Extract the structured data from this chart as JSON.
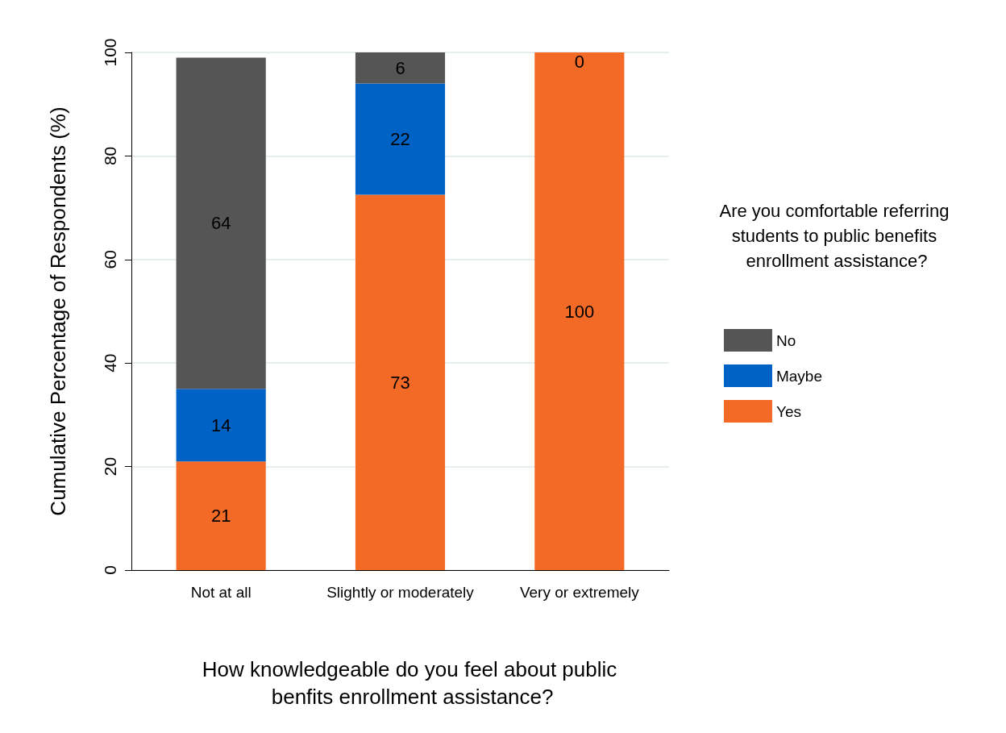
{
  "chart_data": {
    "type": "bar",
    "stacked": true,
    "xlabel": "How knowledgeable do you feel about public benfits enrollment assistance?",
    "ylabel": "Cumulative Percentage of Respondents (%)",
    "legend_title": "Are you comfortable referring students to public benefits enrollment assistance?",
    "categories": [
      "Not at all",
      "Slightly or moderately",
      "Very or extremely"
    ],
    "series": [
      {
        "name": "Yes",
        "color": "#f26a26",
        "values": [
          21,
          72.5,
          100
        ],
        "value_labels": [
          "21",
          "73",
          "100"
        ]
      },
      {
        "name": "Maybe",
        "color": "#0062c4",
        "values": [
          14,
          21.5,
          0
        ],
        "value_labels": [
          "14",
          "22",
          null
        ]
      },
      {
        "name": "No",
        "color": "#555555",
        "values": [
          64,
          6,
          0
        ],
        "value_labels": [
          "64",
          "6",
          "0"
        ]
      }
    ],
    "ylim": [
      0,
      100
    ],
    "yticks": [
      0,
      20,
      40,
      60,
      80,
      100
    ],
    "grid": "y",
    "legend": "right"
  }
}
